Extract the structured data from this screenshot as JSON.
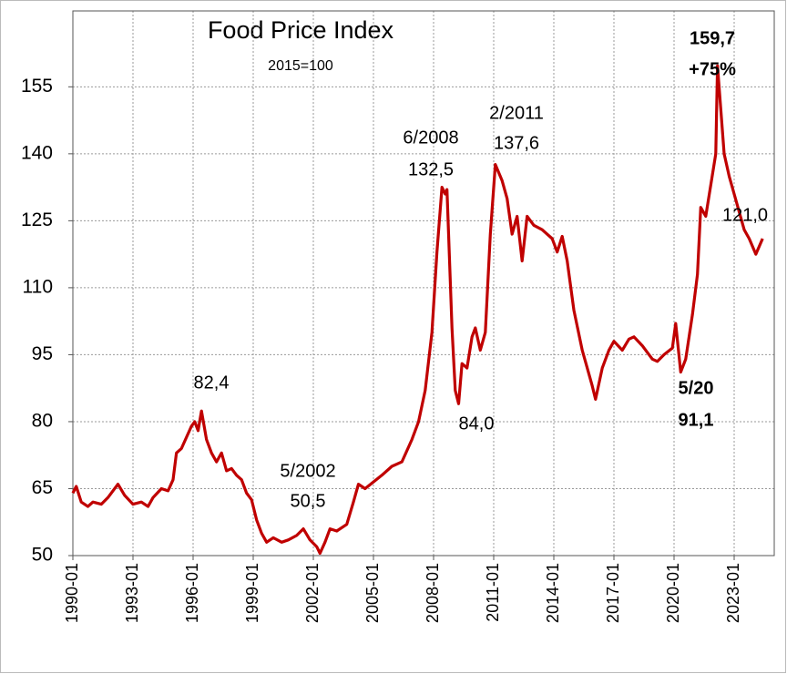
{
  "chart_data": {
    "type": "line",
    "title": "Food Price Index",
    "annotations": [
      {
        "text": "2015=100",
        "bold": false
      },
      {
        "text": "82,4",
        "bold": false
      },
      {
        "text": "5/2002",
        "bold": false
      },
      {
        "text": "50,5",
        "bold": false
      },
      {
        "text": "6/2008",
        "bold": false
      },
      {
        "text": "132,5",
        "bold": false
      },
      {
        "text": "84,0",
        "bold": false
      },
      {
        "text": "2/2011",
        "bold": false
      },
      {
        "text": "137,6",
        "bold": false
      },
      {
        "text": "121,0",
        "bold": false
      },
      {
        "text": "159,7",
        "bold": true
      },
      {
        "text": "+75%",
        "bold": true
      },
      {
        "text": "5/20",
        "bold": true
      },
      {
        "text": "91,1",
        "bold": true
      }
    ],
    "x": [
      "1990-01",
      "1990-03",
      "1990-06",
      "1990-10",
      "1991-01",
      "1991-06",
      "1991-10",
      "1992-01",
      "1992-04",
      "1992-08",
      "1993-01",
      "1993-06",
      "1993-10",
      "1994-01",
      "1994-06",
      "1994-10",
      "1995-01",
      "1995-03",
      "1995-06",
      "1995-09",
      "1995-12",
      "1996-02",
      "1996-04",
      "1996-06",
      "1996-09",
      "1996-12",
      "1997-03",
      "1997-06",
      "1997-09",
      "1997-12",
      "1998-03",
      "1998-06",
      "1998-09",
      "1998-12",
      "1999-03",
      "1999-06",
      "1999-09",
      "2000-01",
      "2000-06",
      "2000-10",
      "2001-03",
      "2001-07",
      "2001-11",
      "2002-03",
      "2002-05",
      "2002-08",
      "2002-11",
      "2003-03",
      "2003-09",
      "2004-01",
      "2004-04",
      "2004-08",
      "2005-01",
      "2005-06",
      "2005-12",
      "2006-06",
      "2006-12",
      "2007-04",
      "2007-08",
      "2007-12",
      "2008-03",
      "2008-06",
      "2008-08",
      "2008-09",
      "2008-12",
      "2009-02",
      "2009-04",
      "2009-06",
      "2009-09",
      "2009-12",
      "2010-02",
      "2010-05",
      "2010-08",
      "2010-11",
      "2011-02",
      "2011-06",
      "2011-09",
      "2011-12",
      "2012-03",
      "2012-06",
      "2012-09",
      "2013-01",
      "2013-06",
      "2013-12",
      "2014-03",
      "2014-06",
      "2014-09",
      "2015-01",
      "2015-06",
      "2015-09",
      "2015-12",
      "2016-02",
      "2016-06",
      "2016-10",
      "2017-01",
      "2017-06",
      "2017-10",
      "2018-01",
      "2018-06",
      "2018-12",
      "2019-03",
      "2019-07",
      "2019-12",
      "2020-02",
      "2020-05",
      "2020-08",
      "2020-12",
      "2021-03",
      "2021-05",
      "2021-08",
      "2021-11",
      "2022-02",
      "2022-03",
      "2022-05",
      "2022-07",
      "2022-10",
      "2023-01",
      "2023-04",
      "2023-07",
      "2023-10",
      "2024-02",
      "2024-06"
    ],
    "series": [
      {
        "name": "Food Price Index",
        "color": "#c00000",
        "values": [
          64,
          65.5,
          62,
          61,
          62,
          61.5,
          63,
          64.5,
          66,
          63.5,
          61.5,
          62,
          61,
          63,
          65,
          64.5,
          67,
          73,
          74,
          76.5,
          79,
          80,
          78,
          82.4,
          76,
          73,
          71,
          73,
          69,
          69.5,
          68,
          67,
          64,
          62.5,
          58,
          55,
          53,
          54,
          53,
          53.5,
          54.5,
          56,
          53.5,
          52,
          50.5,
          53,
          56,
          55.5,
          57,
          62,
          66,
          65,
          66.5,
          68,
          70,
          71,
          76,
          80,
          87,
          100,
          118,
          132.5,
          131,
          132,
          101,
          87,
          84,
          93,
          92,
          99,
          101,
          96,
          100,
          122,
          137.6,
          134,
          130,
          122,
          126,
          116,
          126,
          124,
          123,
          121,
          118,
          121.5,
          116,
          105,
          96,
          92,
          88,
          85,
          92,
          96,
          98,
          96,
          98.5,
          99,
          97,
          94,
          93.5,
          95,
          96.5,
          102,
          91.1,
          94,
          104,
          113,
          128,
          126,
          133,
          140,
          159.7,
          150,
          140,
          135,
          131,
          127,
          123,
          121,
          117.5,
          121
        ]
      }
    ],
    "xlim": [
      "1990-01",
      "2025-01"
    ],
    "xticks": [
      "1990-01",
      "1993-01",
      "1996-01",
      "1999-01",
      "2002-01",
      "2005-01",
      "2008-01",
      "2011-01",
      "2014-01",
      "2017-01",
      "2020-01",
      "2023-01"
    ],
    "ylim": [
      50,
      172
    ],
    "yticks": [
      50,
      65,
      80,
      95,
      110,
      125,
      140,
      155
    ],
    "grid": true
  }
}
